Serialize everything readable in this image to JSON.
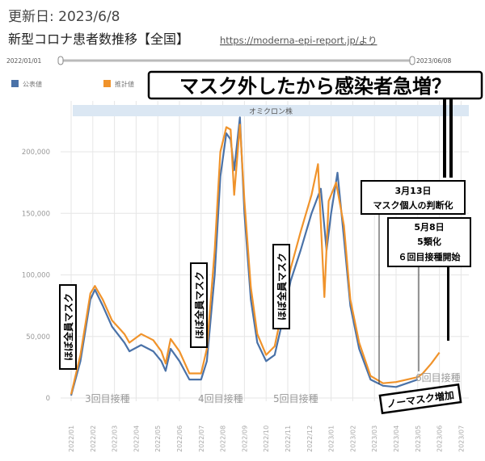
{
  "header": {
    "updated": "更新日: 2023/6/8",
    "title": "新型コロナ患者数推移【全国】",
    "source": "https://moderna-epi-report.jp/より"
  },
  "range_slider": {
    "start": "2022/01/01",
    "end": "2023/06/08"
  },
  "chart_data": {
    "type": "line",
    "title": "",
    "xlabel": "",
    "ylabel": "",
    "x_ticks": [
      "2022/01",
      "2022/02",
      "2022/03",
      "2022/04",
      "2022/05",
      "2022/06",
      "2022/07",
      "2022/08",
      "2022/09",
      "2022/10",
      "2022/11",
      "2022/12",
      "2023/01",
      "2023/02",
      "2023/03",
      "2023/04",
      "2023/05",
      "2023/06",
      "2023/07"
    ],
    "y_ticks": [
      "0",
      "50,000",
      "100,000",
      "150,000",
      "200,000"
    ],
    "ylim": [
      0,
      240000
    ],
    "grid": true,
    "legend_placement": "top-left",
    "band_label": "オミクロン株",
    "series": [
      {
        "name": "公表値",
        "color": "#4a72a8",
        "points": [
          [
            "2022/01/01",
            2000
          ],
          [
            "2022/01/14",
            30000
          ],
          [
            "2022/01/28",
            80000
          ],
          [
            "2022/02/04",
            88000
          ],
          [
            "2022/02/15",
            75000
          ],
          [
            "2022/02/28",
            58000
          ],
          [
            "2022/03/15",
            45000
          ],
          [
            "2022/03/22",
            38000
          ],
          [
            "2022/04/08",
            43000
          ],
          [
            "2022/04/25",
            38000
          ],
          [
            "2022/05/06",
            30000
          ],
          [
            "2022/05/12",
            22000
          ],
          [
            "2022/05/19",
            40000
          ],
          [
            "2022/06/01",
            30000
          ],
          [
            "2022/06/15",
            15000
          ],
          [
            "2022/07/01",
            15000
          ],
          [
            "2022/07/09",
            30000
          ],
          [
            "2022/07/20",
            100000
          ],
          [
            "2022/07/28",
            180000
          ],
          [
            "2022/08/06",
            215000
          ],
          [
            "2022/08/12",
            210000
          ],
          [
            "2022/08/17",
            185000
          ],
          [
            "2022/08/25",
            228000
          ],
          [
            "2022/09/01",
            150000
          ],
          [
            "2022/09/10",
            80000
          ],
          [
            "2022/09/19",
            45000
          ],
          [
            "2022/10/01",
            30000
          ],
          [
            "2022/10/13",
            35000
          ],
          [
            "2022/10/25",
            65000
          ],
          [
            "2022/11/05",
            95000
          ],
          [
            "2022/11/19",
            120000
          ],
          [
            "2022/12/04",
            150000
          ],
          [
            "2022/12/17",
            170000
          ],
          [
            "2022/12/25",
            120000
          ],
          [
            "2023/01/01",
            150000
          ],
          [
            "2023/01/10",
            183000
          ],
          [
            "2023/01/19",
            130000
          ],
          [
            "2023/01/28",
            75000
          ],
          [
            "2023/02/10",
            40000
          ],
          [
            "2023/02/26",
            15000
          ],
          [
            "2023/03/13",
            10000
          ],
          [
            "2023/04/01",
            9000
          ],
          [
            "2023/05/01",
            15000
          ]
        ]
      },
      {
        "name": "推計値",
        "color": "#f0932b",
        "points": [
          [
            "2022/01/01",
            3000
          ],
          [
            "2022/01/14",
            35000
          ],
          [
            "2022/01/28",
            85000
          ],
          [
            "2022/02/04",
            91000
          ],
          [
            "2022/02/15",
            80000
          ],
          [
            "2022/02/28",
            63000
          ],
          [
            "2022/03/15",
            52000
          ],
          [
            "2022/03/22",
            45000
          ],
          [
            "2022/04/08",
            52000
          ],
          [
            "2022/04/25",
            47000
          ],
          [
            "2022/05/06",
            38000
          ],
          [
            "2022/05/12",
            28000
          ],
          [
            "2022/05/19",
            48000
          ],
          [
            "2022/06/01",
            38000
          ],
          [
            "2022/06/15",
            20000
          ],
          [
            "2022/07/01",
            20000
          ],
          [
            "2022/07/09",
            40000
          ],
          [
            "2022/07/20",
            120000
          ],
          [
            "2022/07/28",
            200000
          ],
          [
            "2022/08/06",
            220000
          ],
          [
            "2022/08/12",
            218000
          ],
          [
            "2022/08/17",
            165000
          ],
          [
            "2022/08/25",
            222000
          ],
          [
            "2022/09/01",
            160000
          ],
          [
            "2022/09/10",
            90000
          ],
          [
            "2022/09/19",
            52000
          ],
          [
            "2022/10/01",
            35000
          ],
          [
            "2022/10/13",
            42000
          ],
          [
            "2022/10/25",
            75000
          ],
          [
            "2022/11/05",
            105000
          ],
          [
            "2022/11/19",
            135000
          ],
          [
            "2022/12/04",
            165000
          ],
          [
            "2022/12/13",
            190000
          ],
          [
            "2022/12/22",
            82000
          ],
          [
            "2022/12/28",
            160000
          ],
          [
            "2023/01/08",
            175000
          ],
          [
            "2023/01/19",
            140000
          ],
          [
            "2023/01/28",
            80000
          ],
          [
            "2023/02/10",
            45000
          ],
          [
            "2023/02/26",
            18000
          ],
          [
            "2023/03/13",
            12000
          ],
          [
            "2023/04/01",
            13000
          ],
          [
            "2023/05/01",
            17000
          ],
          [
            "2023/05/08",
            20000
          ],
          [
            "2023/05/20",
            28000
          ],
          [
            "2023/06/01",
            37000
          ]
        ]
      }
    ]
  },
  "annotations": {
    "headline": "マスク外したから感染者急増？",
    "mask_labels": [
      "ほぼ全員マスク",
      "ほぼ全員マスク",
      "ほぼ全員マスク"
    ],
    "doses": [
      "3回目接種",
      "4回目接種",
      "5回目接種",
      "6回目接種"
    ],
    "box1": [
      "3月13日",
      "マスク個人の判断化"
    ],
    "box2": [
      "5月8日",
      "5類化",
      "６回目接種開始"
    ],
    "no_mask": "ノーマスク増加"
  }
}
